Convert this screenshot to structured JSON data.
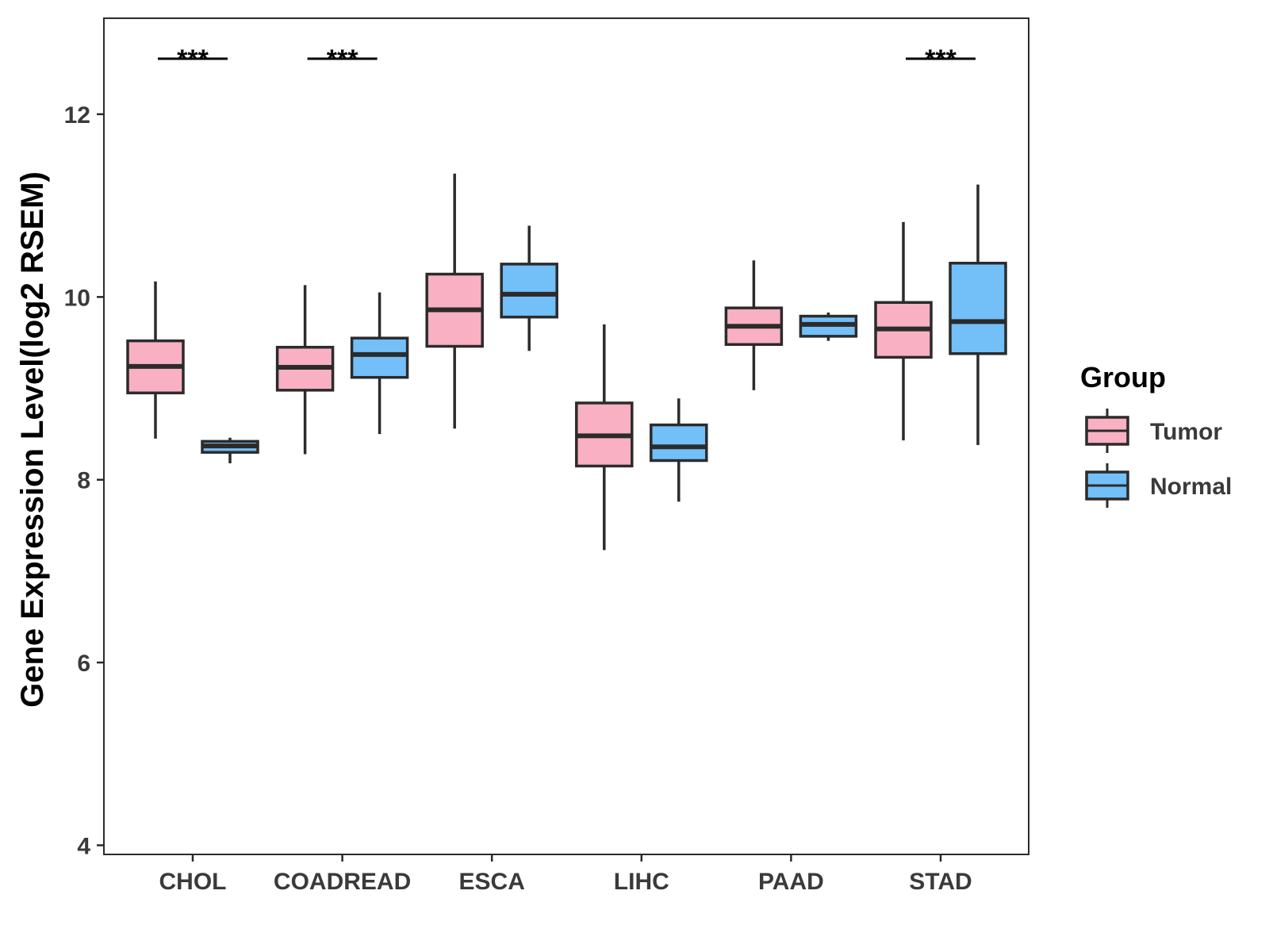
{
  "chart_data": {
    "type": "boxplot",
    "title": "",
    "xlabel": "",
    "ylabel": "Gene Expression Level(log2 RSEM)",
    "ylim": [
      3.9,
      13.05
    ],
    "yticks": [
      4,
      6,
      8,
      10,
      12
    ],
    "grid": false,
    "legend": {
      "title": "Group",
      "placement": "right"
    },
    "categories": [
      "CHOL",
      "COADREAD",
      "ESCA",
      "LIHC",
      "PAAD",
      "STAD"
    ],
    "series": [
      {
        "name": "Tumor",
        "color": "#f9b0c3",
        "boxes": [
          {
            "min": 8.45,
            "q1": 8.95,
            "median": 9.24,
            "q3": 9.52,
            "max": 10.17
          },
          {
            "min": 8.28,
            "q1": 8.98,
            "median": 9.23,
            "q3": 9.45,
            "max": 10.13
          },
          {
            "min": 8.56,
            "q1": 9.46,
            "median": 9.86,
            "q3": 10.25,
            "max": 11.35
          },
          {
            "min": 7.23,
            "q1": 8.15,
            "median": 8.48,
            "q3": 8.84,
            "max": 9.7
          },
          {
            "min": 8.98,
            "q1": 9.48,
            "median": 9.68,
            "q3": 9.88,
            "max": 10.4
          },
          {
            "min": 8.43,
            "q1": 9.34,
            "median": 9.65,
            "q3": 9.94,
            "max": 10.82
          }
        ]
      },
      {
        "name": "Normal",
        "color": "#73bff8",
        "boxes": [
          {
            "min": 8.18,
            "q1": 8.3,
            "median": 8.37,
            "q3": 8.42,
            "max": 8.46
          },
          {
            "min": 8.5,
            "q1": 9.12,
            "median": 9.37,
            "q3": 9.55,
            "max": 10.05
          },
          {
            "min": 9.41,
            "q1": 9.78,
            "median": 10.03,
            "q3": 10.36,
            "max": 10.78
          },
          {
            "min": 7.76,
            "q1": 8.21,
            "median": 8.36,
            "q3": 8.6,
            "max": 8.89
          },
          {
            "min": 9.52,
            "q1": 9.57,
            "median": 9.7,
            "q3": 9.79,
            "max": 9.83
          },
          {
            "min": 8.38,
            "q1": 9.38,
            "median": 9.73,
            "q3": 10.37,
            "max": 11.23
          }
        ]
      }
    ],
    "annotations": [
      {
        "category": "CHOL",
        "text": "***"
      },
      {
        "category": "COADREAD",
        "text": "***"
      },
      {
        "category": "STAD",
        "text": "***"
      }
    ]
  }
}
